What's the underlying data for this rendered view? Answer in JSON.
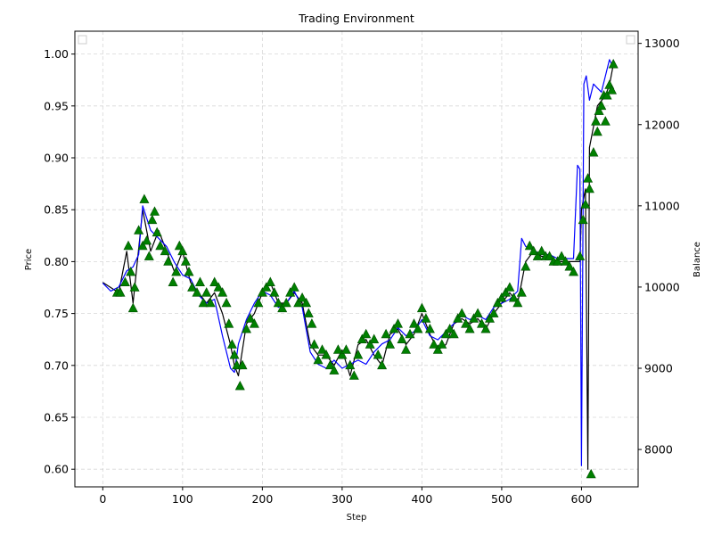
{
  "title": "Trading Environment",
  "chart_data": {
    "type": "line",
    "title": "Trading Environment",
    "xlabel": "Step",
    "ylabel": "Price",
    "y2label": "Balance",
    "xlim": [
      -35,
      671
    ],
    "ylim": [
      0.583,
      1.022
    ],
    "y2lim": [
      7540,
      13150
    ],
    "xticks": [
      0,
      100,
      200,
      300,
      400,
      500,
      600
    ],
    "yticks": [
      0.6,
      0.65,
      0.7,
      0.75,
      0.8,
      0.85,
      0.9,
      0.95,
      1.0
    ],
    "ytick_labels": [
      "0.60",
      "0.65",
      "0.70",
      "0.75",
      "0.80",
      "0.85",
      "0.90",
      "0.95",
      "1.00"
    ],
    "y2ticks": [
      8000,
      9000,
      10000,
      11000,
      12000,
      13000
    ],
    "y2tick_labels": [
      "8000",
      "9000",
      "10000",
      "11000",
      "12000",
      "13000"
    ],
    "grid": true,
    "legend": "top-left (empty)",
    "colors": {
      "price": "#000000",
      "balance": "#0000ff",
      "buy_marker": "#008000"
    },
    "series": [
      {
        "axis": "left",
        "color": "#000000",
        "x": [
          0,
          10,
          20,
          30,
          38,
          50,
          60,
          70,
          80,
          90,
          100,
          110,
          120,
          130,
          140,
          150,
          160,
          165,
          170,
          180,
          190,
          200,
          210,
          220,
          230,
          240,
          250,
          260,
          270,
          280,
          290,
          300,
          310,
          320,
          330,
          340,
          350,
          360,
          370,
          380,
          390,
          400,
          410,
          420,
          430,
          440,
          450,
          460,
          470,
          480,
          490,
          500,
          510,
          520,
          530,
          540,
          550,
          560,
          570,
          580,
          590,
          598,
          600,
          605,
          608,
          610,
          615,
          620,
          625,
          630,
          635,
          640
        ],
        "y": [
          0.78,
          0.775,
          0.77,
          0.81,
          0.76,
          0.85,
          0.81,
          0.83,
          0.81,
          0.79,
          0.81,
          0.78,
          0.77,
          0.76,
          0.77,
          0.75,
          0.72,
          0.7,
          0.69,
          0.74,
          0.75,
          0.77,
          0.78,
          0.76,
          0.76,
          0.77,
          0.76,
          0.72,
          0.71,
          0.71,
          0.7,
          0.715,
          0.69,
          0.72,
          0.725,
          0.71,
          0.7,
          0.73,
          0.735,
          0.72,
          0.73,
          0.75,
          0.73,
          0.715,
          0.72,
          0.74,
          0.745,
          0.74,
          0.745,
          0.735,
          0.75,
          0.76,
          0.77,
          0.76,
          0.8,
          0.81,
          0.805,
          0.805,
          0.8,
          0.8,
          0.8,
          0.8,
          0.85,
          0.87,
          0.6,
          0.91,
          0.93,
          0.95,
          0.955,
          0.96,
          0.97,
          0.99
        ]
      },
      {
        "axis": "right",
        "color": "#0000ff",
        "x": [
          0,
          10,
          20,
          30,
          38,
          45,
          50,
          60,
          70,
          80,
          90,
          100,
          110,
          120,
          130,
          140,
          150,
          160,
          165,
          170,
          180,
          190,
          200,
          210,
          220,
          230,
          240,
          250,
          260,
          270,
          280,
          290,
          300,
          310,
          320,
          330,
          340,
          350,
          360,
          370,
          380,
          390,
          400,
          410,
          420,
          430,
          440,
          450,
          460,
          470,
          480,
          490,
          500,
          510,
          520,
          525,
          530,
          540,
          550,
          560,
          570,
          580,
          590,
          595,
          598,
          600,
          603,
          606,
          610,
          615,
          620,
          625,
          630,
          635,
          640
        ],
        "y": [
          10050,
          9950,
          10000,
          10200,
          10250,
          10400,
          11000,
          10700,
          10600,
          10500,
          10300,
          10150,
          10100,
          9900,
          9800,
          9850,
          9400,
          9000,
          8950,
          9300,
          9600,
          9800,
          9950,
          9900,
          9750,
          9800,
          9950,
          9750,
          9200,
          9050,
          9000,
          9100,
          9000,
          9050,
          9100,
          9050,
          9200,
          9300,
          9350,
          9500,
          9400,
          9450,
          9600,
          9400,
          9350,
          9450,
          9550,
          9650,
          9600,
          9650,
          9600,
          9750,
          9800,
          9850,
          9950,
          10600,
          10500,
          10450,
          10400,
          10400,
          10350,
          10350,
          10350,
          11500,
          11450,
          7800,
          12500,
          12600,
          12300,
          12500,
          12450,
          12400,
          12600,
          12800,
          12700
        ]
      }
    ],
    "buy_markers": {
      "axis": "left",
      "color": "#008000",
      "x": [
        18,
        22,
        28,
        32,
        35,
        38,
        40,
        45,
        50,
        52,
        55,
        58,
        62,
        65,
        68,
        72,
        78,
        82,
        88,
        92,
        96,
        100,
        104,
        108,
        112,
        118,
        122,
        126,
        130,
        135,
        140,
        145,
        150,
        155,
        158,
        162,
        165,
        168,
        172,
        175,
        180,
        185,
        190,
        195,
        200,
        205,
        210,
        215,
        220,
        225,
        230,
        235,
        240,
        245,
        250,
        255,
        258,
        262,
        265,
        270,
        275,
        280,
        285,
        290,
        295,
        300,
        305,
        310,
        315,
        320,
        325,
        330,
        335,
        340,
        345,
        350,
        355,
        360,
        365,
        370,
        375,
        380,
        385,
        390,
        395,
        400,
        405,
        410,
        415,
        420,
        425,
        430,
        435,
        440,
        445,
        450,
        455,
        460,
        465,
        470,
        475,
        480,
        485,
        490,
        495,
        500,
        505,
        510,
        515,
        520,
        525,
        530,
        535,
        540,
        545,
        550,
        555,
        560,
        565,
        570,
        575,
        580,
        585,
        590,
        598,
        602,
        605,
        608,
        610,
        612,
        615,
        618,
        620,
        622,
        625,
        628,
        630,
        632,
        635,
        638,
        640
      ],
      "y": [
        0.77,
        0.77,
        0.78,
        0.815,
        0.79,
        0.755,
        0.775,
        0.83,
        0.815,
        0.86,
        0.82,
        0.805,
        0.84,
        0.848,
        0.828,
        0.815,
        0.81,
        0.8,
        0.78,
        0.79,
        0.815,
        0.81,
        0.8,
        0.79,
        0.775,
        0.77,
        0.78,
        0.76,
        0.77,
        0.76,
        0.78,
        0.775,
        0.77,
        0.76,
        0.74,
        0.72,
        0.71,
        0.7,
        0.68,
        0.7,
        0.735,
        0.745,
        0.74,
        0.76,
        0.77,
        0.775,
        0.78,
        0.77,
        0.76,
        0.755,
        0.76,
        0.77,
        0.775,
        0.76,
        0.765,
        0.76,
        0.75,
        0.74,
        0.72,
        0.705,
        0.715,
        0.71,
        0.7,
        0.695,
        0.715,
        0.71,
        0.715,
        0.7,
        0.69,
        0.71,
        0.725,
        0.73,
        0.72,
        0.725,
        0.71,
        0.7,
        0.73,
        0.72,
        0.735,
        0.74,
        0.725,
        0.715,
        0.73,
        0.74,
        0.735,
        0.755,
        0.745,
        0.735,
        0.72,
        0.715,
        0.72,
        0.73,
        0.735,
        0.73,
        0.745,
        0.75,
        0.74,
        0.735,
        0.745,
        0.75,
        0.74,
        0.735,
        0.745,
        0.75,
        0.76,
        0.765,
        0.77,
        0.775,
        0.765,
        0.76,
        0.77,
        0.795,
        0.815,
        0.81,
        0.805,
        0.81,
        0.805,
        0.805,
        0.8,
        0.8,
        0.805,
        0.8,
        0.795,
        0.79,
        0.805,
        0.84,
        0.855,
        0.88,
        0.87,
        0.595,
        0.905,
        0.935,
        0.925,
        0.945,
        0.95,
        0.96,
        0.935,
        0.96,
        0.97,
        0.965,
        0.99
      ]
    }
  }
}
